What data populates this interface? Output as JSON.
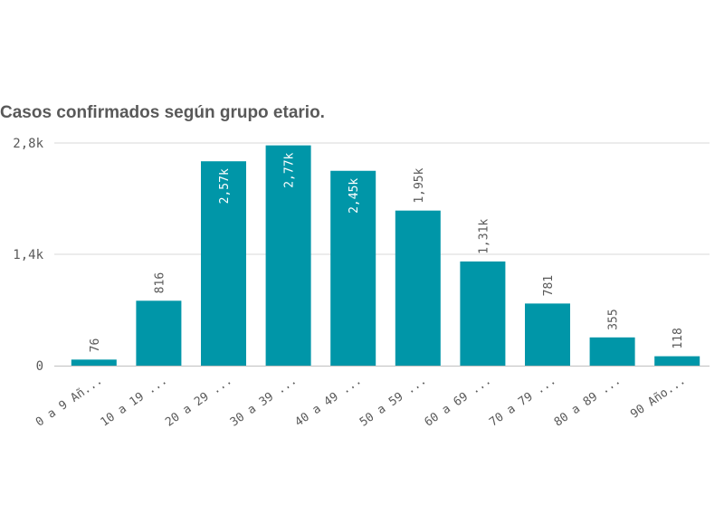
{
  "chart_data": {
    "type": "bar",
    "title": "Casos confirmados según grupo etario.",
    "xlabel": "",
    "ylabel": "",
    "categories": [
      "0 a 9 Añ...",
      "10 a 19 ...",
      "20 a 29 ...",
      "30 a 39 ...",
      "40 a 49 ...",
      "50 a 59 ...",
      "60 a 69 ...",
      "70 a 79 ...",
      "80 a 89 ...",
      "90 Año..."
    ],
    "values": [
      76,
      816,
      2570,
      2770,
      2450,
      1950,
      1310,
      781,
      355,
      118
    ],
    "data_labels": [
      "76",
      "816",
      "2,57k",
      "2,77k",
      "2,45k",
      "1,95k",
      "1,31k",
      "781",
      "355",
      "118"
    ],
    "ylim": [
      0,
      2800
    ],
    "y_ticks": [
      {
        "value": 0,
        "label": "0"
      },
      {
        "value": 1400,
        "label": "1,4k"
      },
      {
        "value": 2800,
        "label": "2,8k"
      }
    ],
    "grid": true,
    "legend": "none",
    "colors": {
      "bar": "#0096a8",
      "label_inside": "#ffffff",
      "label_outside": "#595959",
      "title": "#595959"
    }
  }
}
